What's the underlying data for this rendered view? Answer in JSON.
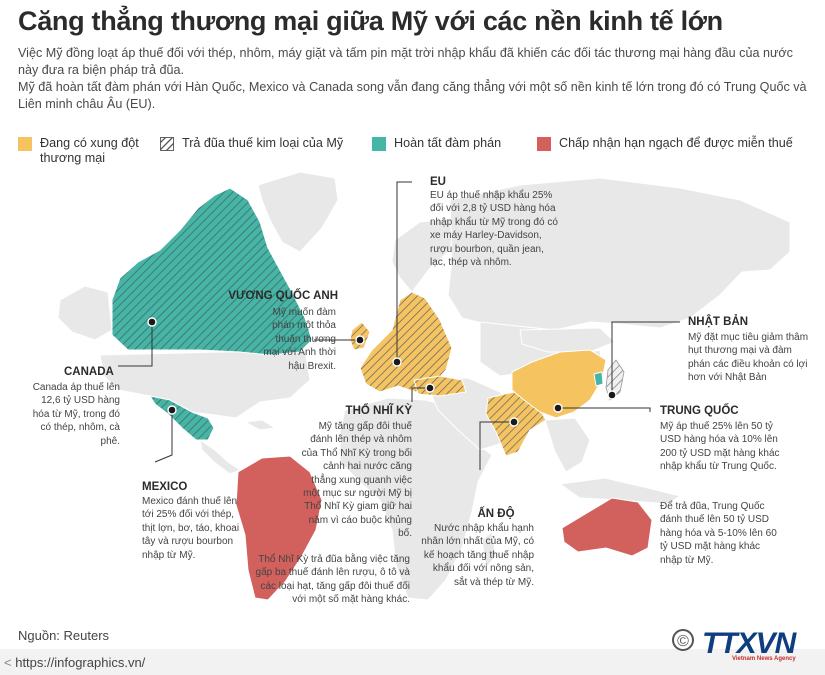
{
  "title": "Căng thẳng thương mại giữa Mỹ với các nền kinh tế lớn",
  "intro": [
    "Việc Mỹ đồng loạt áp thuế đối với thép, nhôm, máy giặt và tấm pin mặt trời nhập khẩu đã khiến các đối tác thương mại hàng đầu của nước này đưa ra biện pháp trả đũa.",
    "Mỹ đã hoàn tất đàm phán với Hàn Quốc, Mexico và Canada song vẫn đang căng thẳng với một số nền kinh tế lớn trong đó có Trung Quốc và Liên minh châu Âu (EU)."
  ],
  "legend": [
    {
      "label": "Đang có xung đột thương mại",
      "color": "#f5c460",
      "pattern": "solid"
    },
    {
      "label": "Trả đũa thuế kim loại của Mỹ",
      "color": "#ffffff",
      "pattern": "hatch"
    },
    {
      "label": "Hoàn tất đàm phán",
      "color": "#47b5a6",
      "pattern": "solid"
    },
    {
      "label": "Chấp nhận hạn ngạch để được miễn thuế",
      "color": "#d2605c",
      "pattern": "solid"
    }
  ],
  "colors": {
    "land": "#e8e8e8",
    "conflict": "#f5c460",
    "negotiated": "#47b5a6",
    "quota": "#d2605c",
    "hatch": "#6b6b6b",
    "leader": "#333333"
  },
  "regions": {
    "canada": {
      "heading": "CANADA",
      "text": "Canada áp thuế lên 12,6 tỷ USD hàng hóa từ Mỹ, trong đó có thép, nhôm, cà phê."
    },
    "mexico": {
      "heading": "MEXICO",
      "text": "Mexico đánh thuế lên tới 25% đối với thép, thịt lợn, bơ, táo, khoai tây và rượu bourbon nhập từ Mỹ."
    },
    "uk": {
      "heading": "VƯƠNG QUỐC ANH",
      "text": "Mỹ muốn đàm phán một thỏa thuận thương mại với Anh thời hậu Brexit."
    },
    "eu": {
      "heading": "EU",
      "text": "EU áp thuế nhập khẩu 25% đối với 2,8 tỷ USD hàng hóa nhập khẩu từ Mỹ trong đó có xe máy Harley-Davidson, rượu bourbon, quần jean, lạc, thép và nhôm."
    },
    "turkey": {
      "heading": "THỔ NHĨ KỲ",
      "text": "Mỹ tăng gấp đôi thuế đánh lên thép và nhôm của Thổ Nhĩ Kỳ trong bối cảnh hai nước căng thẳng xung quanh việc một mục sư người Mỹ bị Thổ Nhĩ Kỳ giam giữ hai năm vì cáo buộc khủng bố.",
      "text2": "Thổ Nhĩ Kỳ trả đũa bằng việc tăng gấp ba thuế đánh lên rượu, ô tô và các loại hạt, tăng gấp đôi thuế đối với một số mặt hàng khác."
    },
    "india": {
      "heading": "ẤN ĐỘ",
      "text": "Nước nhập khẩu hạnh nhân lớn nhất của Mỹ, có kế hoạch tăng thuế nhập khẩu đối với nông sản, sắt và thép từ Mỹ."
    },
    "japan": {
      "heading": "NHẬT BẢN",
      "text": "Mỹ đặt mục tiêu giảm thâm hụt thương mại và đàm phán các điều khoản có lợi hơn với Nhật Bản"
    },
    "china": {
      "heading": "TRUNG QUỐC",
      "text": "Mỹ áp thuế 25% lên 50 tỷ USD hàng hóa và 10% lên 200 tỷ USD mặt hàng khác nhập khẩu từ Trung Quốc.",
      "text2": "Để trả đũa, Trung Quốc đánh thuế lên 50 tỷ USD hàng hóa và 5-10% lên 60 tỷ USD mặt hàng khác nhập từ Mỹ."
    }
  },
  "source": "Nguồn: Reuters",
  "footer": {
    "url": "https://infographics.vn/",
    "logo_text": "TTXVN",
    "agency": "Vietnam News Agency",
    "copyright": "©"
  }
}
